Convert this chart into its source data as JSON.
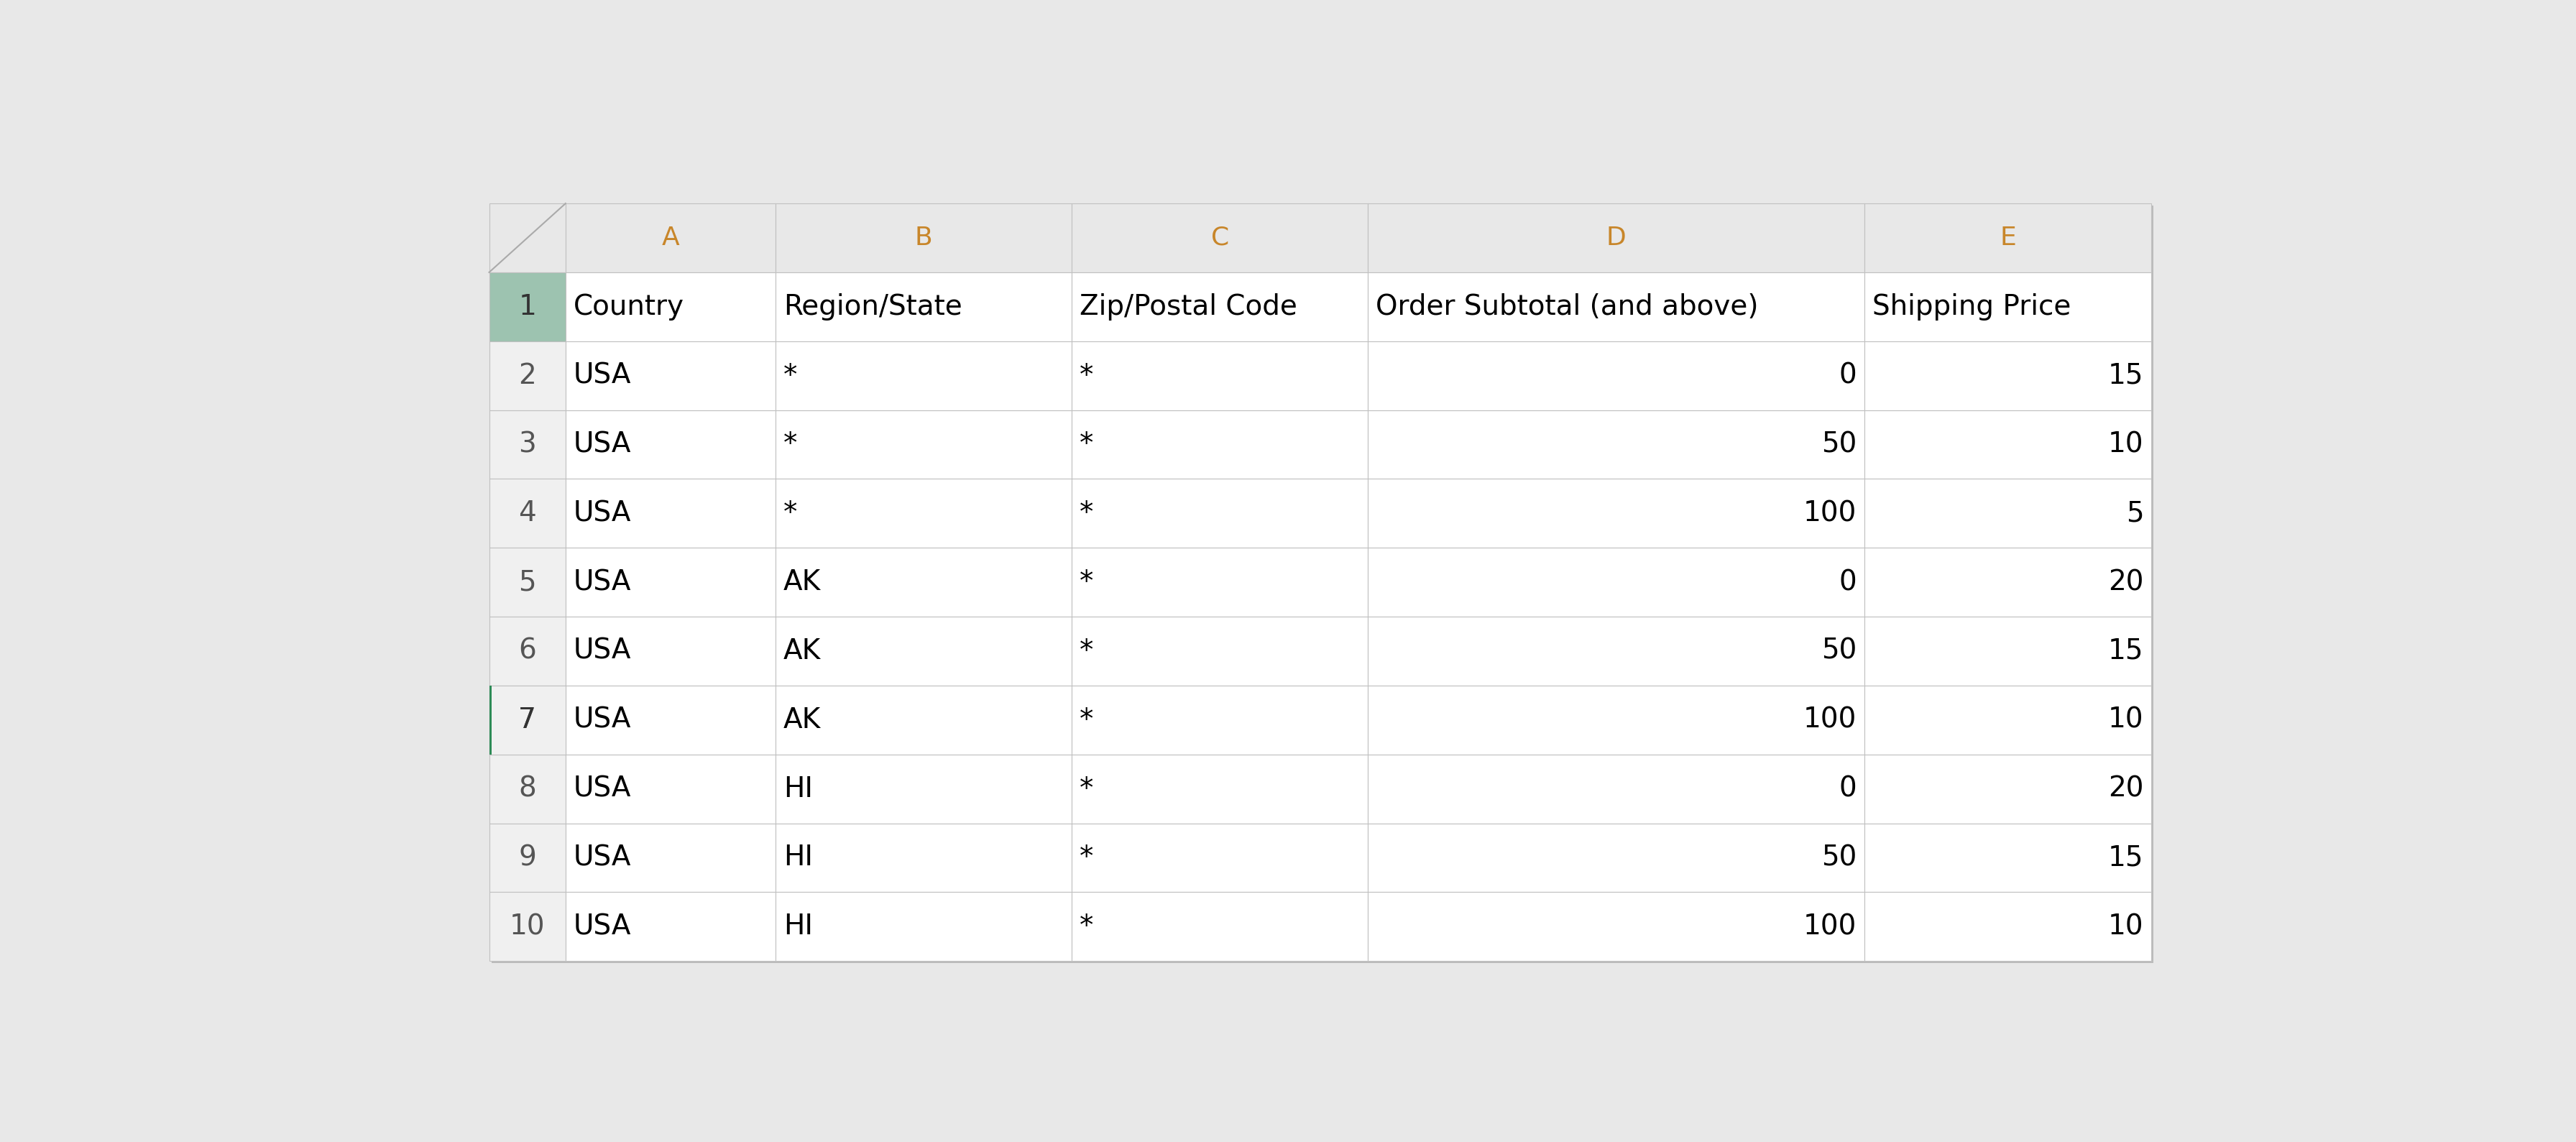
{
  "col_headers": [
    "A",
    "B",
    "C",
    "D",
    "E"
  ],
  "header_row": [
    "Country",
    "Region/State",
    "Zip/Postal Code",
    "Order Subtotal (and above)",
    "Shipping Price"
  ],
  "rows": [
    [
      "USA",
      "*",
      "*",
      "0",
      "15"
    ],
    [
      "USA",
      "*",
      "*",
      "50",
      "10"
    ],
    [
      "USA",
      "*",
      "*",
      "100",
      "5"
    ],
    [
      "USA",
      "AK",
      "*",
      "0",
      "20"
    ],
    [
      "USA",
      "AK",
      "*",
      "50",
      "15"
    ],
    [
      "USA",
      "AK",
      "*",
      "100",
      "10"
    ],
    [
      "USA",
      "HI",
      "*",
      "0",
      "20"
    ],
    [
      "USA",
      "HI",
      "*",
      "50",
      "15"
    ],
    [
      "USA",
      "HI",
      "*",
      "100",
      "10"
    ]
  ],
  "col_header_bg": "#e8e8e8",
  "row_header_bg": "#f0f0f0",
  "row1_bg": "#9dc3b0",
  "data_bg": "#ffffff",
  "border_color": "#c0c0c0",
  "outer_border_color": "#a0a0a0",
  "header_text_color": "#000000",
  "col_header_text_color": "#c8862a",
  "row_num_text_color": "#555555",
  "font_size": 28,
  "col_header_font_size": 26,
  "background_color": "#e8e8e8",
  "table_bg": "#f5f5f5",
  "selected_row_indicator_color": "#2e8b57",
  "row7_row_bg": "#f0f0f0",
  "shadow_color": "#bbbbbb"
}
